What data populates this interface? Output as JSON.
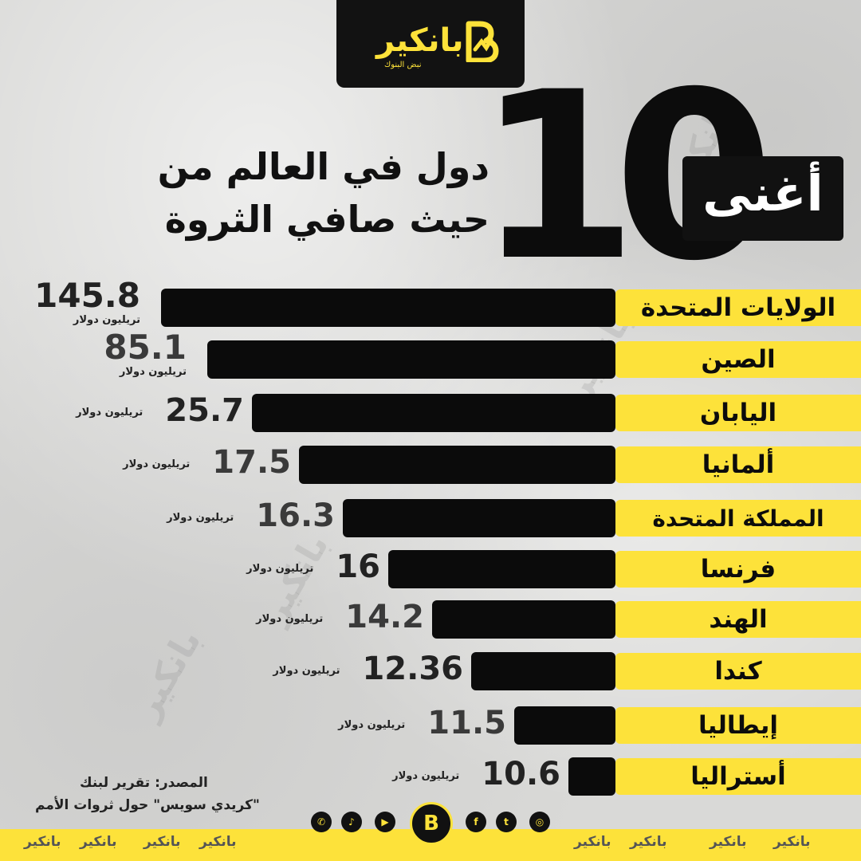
{
  "brand": {
    "name": "بانكير",
    "tagline": "نبض البنوك"
  },
  "title": {
    "number": "10",
    "word": "أغنى",
    "line1": "دول في العالم من",
    "line2": "حيث صافي الثروة"
  },
  "colors": {
    "accent": "#fde23a",
    "bar": "#0b0b0b"
  },
  "chart_data": {
    "type": "bar",
    "orientation": "horizontal",
    "unit": "تريليون دولار",
    "categories": [
      "الولايات المتحدة",
      "الصين",
      "اليابان",
      "ألمانيا",
      "المملكة المتحدة",
      "فرنسا",
      "الهند",
      "كندا",
      "إيطاليا",
      "أستراليا"
    ],
    "values": [
      145.8,
      85.1,
      25.7,
      17.5,
      16.3,
      16,
      14.2,
      12.36,
      11.5,
      10.6
    ],
    "value_labels": [
      "145.8",
      "85.1",
      "25.7",
      "17.5",
      "16.3",
      "16",
      "14.2",
      "12.36",
      "11.5",
      "10.6"
    ]
  },
  "source": {
    "line1": "المصدر: تقرير لبنك",
    "line2": "\"كريدي سويس\" حول ثروات الأمم"
  },
  "social": [
    "whatsapp-icon",
    "tiktok-icon",
    "youtube-icon",
    "facebook-icon",
    "twitter-icon",
    "instagram-icon"
  ],
  "social_glyphs": [
    "✆",
    "♪",
    "▶",
    "f",
    "t",
    "◎"
  ],
  "footer_logo": "بانكير"
}
